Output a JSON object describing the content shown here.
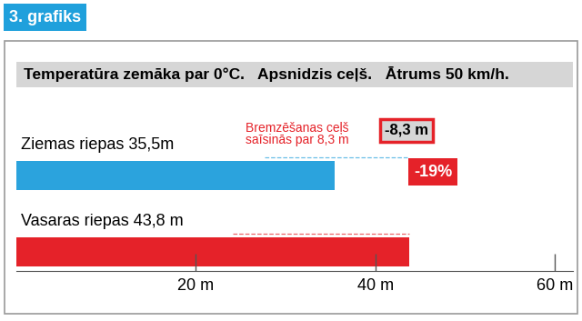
{
  "header": "3. grafiks",
  "chart_data": {
    "type": "bar",
    "orientation": "horizontal",
    "title": "Temperatūra zemāka par 0°C.   Apsnidzis ceļš.   Ātrums 50 km/h.",
    "categories": [
      "Ziemas riepas 35,5m",
      "Vasaras riepas 43,8 m"
    ],
    "values": [
      35.5,
      43.8
    ],
    "colors": [
      "#2ba3dd",
      "#e52229"
    ],
    "xlim": [
      0,
      62
    ],
    "xticks": [
      {
        "value": 20,
        "label": "20 m"
      },
      {
        "value": 40,
        "label": "40 m"
      },
      {
        "value": 60,
        "label": "60 m"
      }
    ],
    "grid": false,
    "annotations": [
      {
        "text": "Bremzēšanas ceļš\nsaīsinās par 8,3 m"
      },
      {
        "text": "-8,3 m"
      },
      {
        "text": "-19%"
      }
    ]
  }
}
